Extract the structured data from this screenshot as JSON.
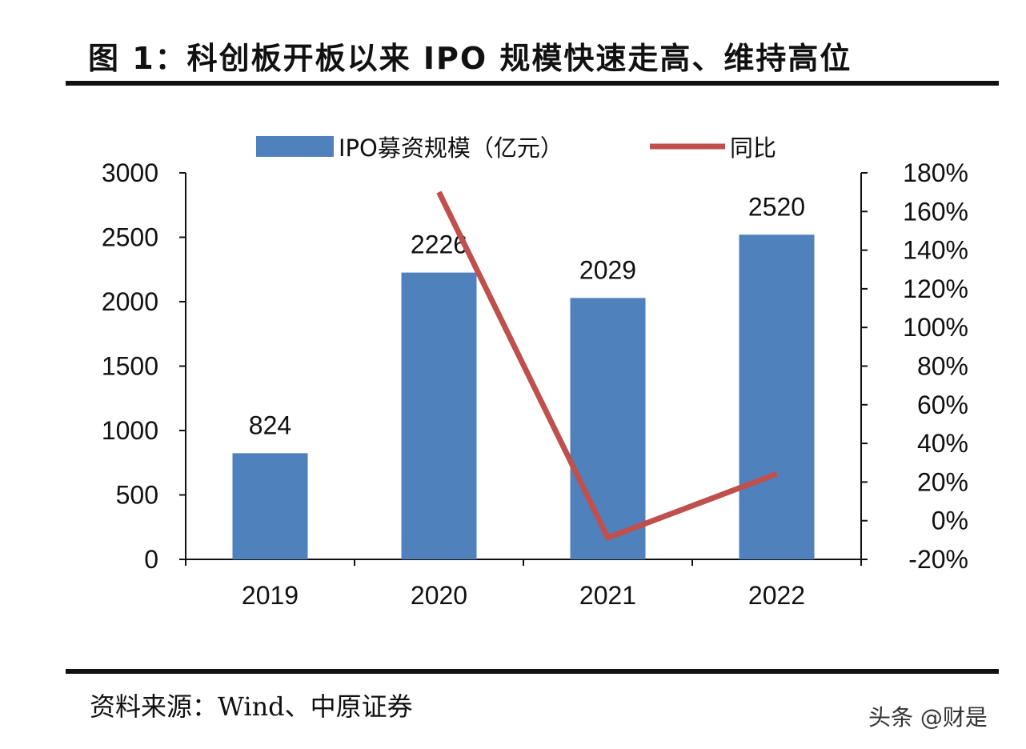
{
  "title": "图 1：科创板开板以来 IPO 规模快速走高、维持高位",
  "source": "资料来源：Wind、中原证券",
  "watermark": "头条 @财是",
  "chart_data": {
    "type": "bar",
    "categories": [
      "2019",
      "2020",
      "2021",
      "2022"
    ],
    "series": [
      {
        "name": "IPO募资规模（亿元）",
        "type": "bar",
        "axis": "left",
        "values": [
          824,
          2226,
          2029,
          2520
        ],
        "color": "#4F81BD"
      },
      {
        "name": "同比",
        "type": "line",
        "axis": "right",
        "values": [
          null,
          170,
          -8.8,
          24.2
        ],
        "color": "#C0504D"
      }
    ],
    "data_labels": [
      "824",
      "2226",
      "2029",
      "2520"
    ],
    "left_axis": {
      "ylim": [
        0,
        3000
      ],
      "ticks": [
        "0",
        "500",
        "1000",
        "1500",
        "2000",
        "2500",
        "3000"
      ]
    },
    "right_axis": {
      "ylim": [
        -20,
        180
      ],
      "ticks": [
        "-20%",
        "0%",
        "20%",
        "40%",
        "60%",
        "80%",
        "100%",
        "120%",
        "140%",
        "160%",
        "180%"
      ]
    },
    "grid": false,
    "legend": "top"
  }
}
